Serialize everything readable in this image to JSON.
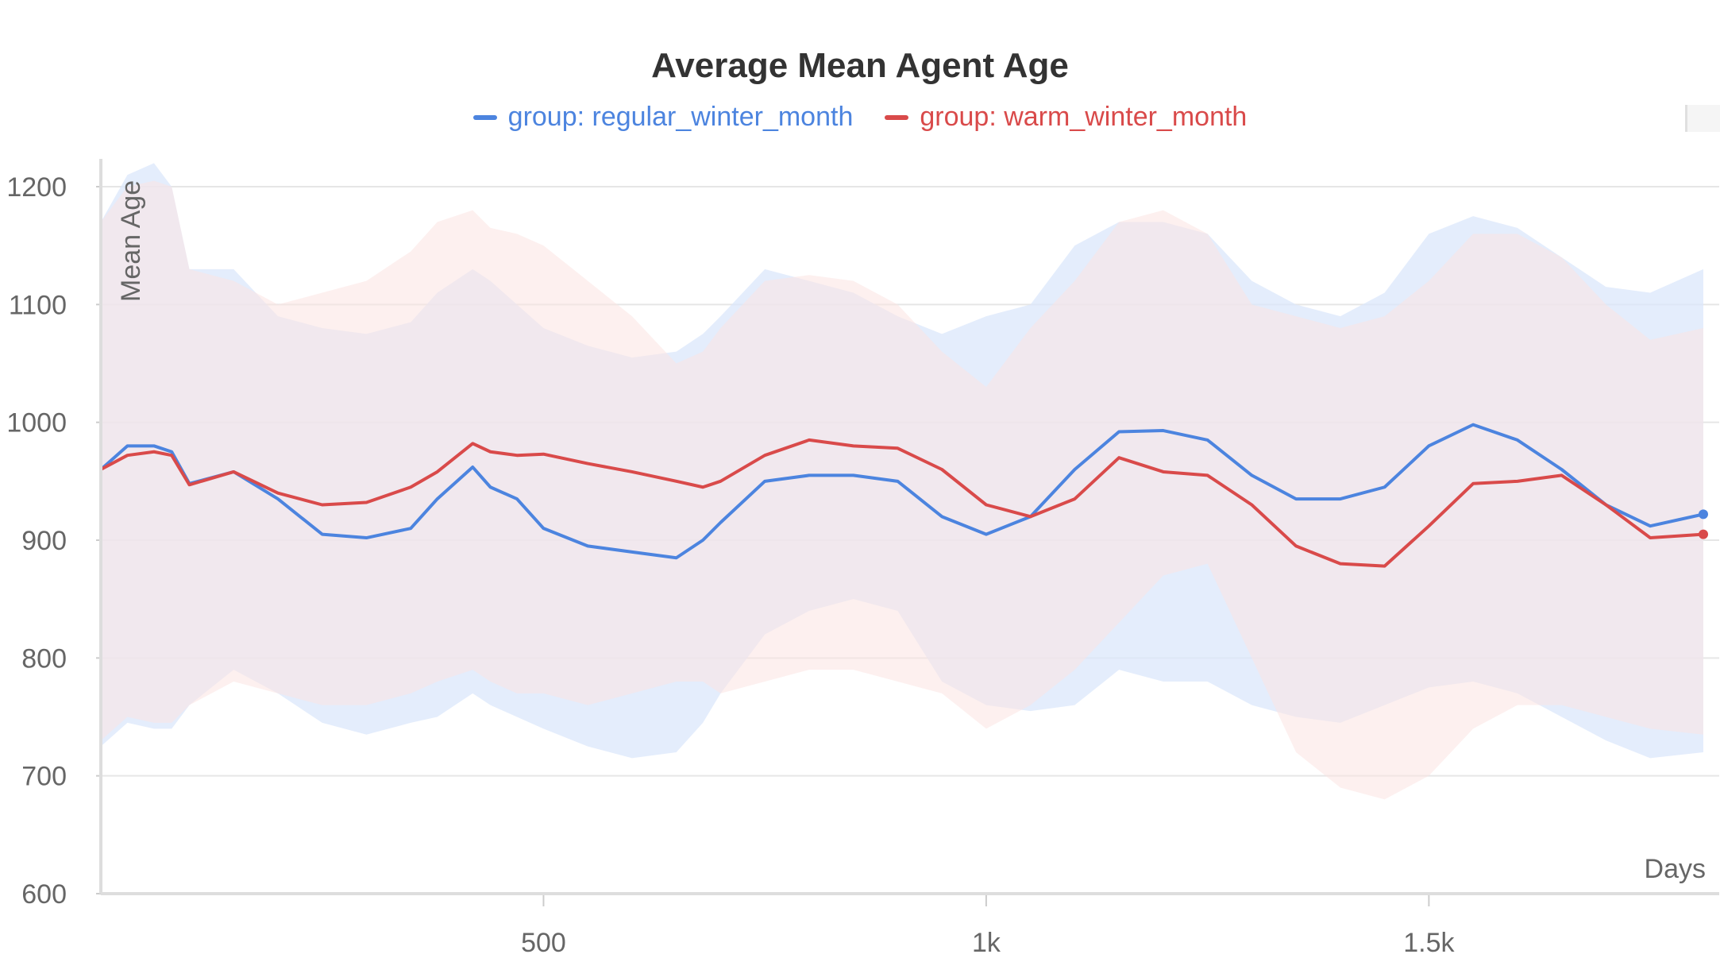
{
  "chart_data": {
    "type": "line",
    "title": "Average Mean Agent Age",
    "xlabel": "Days",
    "ylabel": "Mean Age",
    "xlim": [
      0,
      1810
    ],
    "ylim": [
      600,
      1200
    ],
    "x_ticks": [
      500,
      1000,
      1500
    ],
    "x_tick_labels": [
      "500",
      "1k",
      "1.5k"
    ],
    "y_ticks": [
      600,
      700,
      800,
      900,
      1000,
      1100,
      1200
    ],
    "grid": true,
    "legend_position": "top-center",
    "x": [
      0,
      30,
      60,
      80,
      100,
      150,
      200,
      250,
      300,
      350,
      380,
      420,
      440,
      470,
      500,
      550,
      600,
      650,
      680,
      700,
      750,
      800,
      850,
      900,
      950,
      1000,
      1050,
      1100,
      1150,
      1200,
      1250,
      1300,
      1350,
      1400,
      1450,
      1500,
      1550,
      1600,
      1650,
      1700,
      1750,
      1810
    ],
    "series": [
      {
        "name": "group: regular_winter_month",
        "color": "#4c84df",
        "band_color": "#dbe7fb",
        "values": [
          960,
          980,
          980,
          975,
          948,
          958,
          935,
          905,
          902,
          910,
          935,
          962,
          945,
          935,
          910,
          895,
          890,
          885,
          900,
          915,
          950,
          955,
          955,
          950,
          920,
          905,
          920,
          960,
          992,
          993,
          985,
          955,
          935,
          935,
          945,
          980,
          998,
          985,
          960,
          930,
          912,
          922
        ],
        "upper": [
          1170,
          1210,
          1220,
          1200,
          1130,
          1130,
          1090,
          1080,
          1075,
          1085,
          1110,
          1130,
          1120,
          1100,
          1080,
          1065,
          1055,
          1060,
          1075,
          1090,
          1130,
          1120,
          1110,
          1090,
          1075,
          1090,
          1100,
          1150,
          1170,
          1170,
          1160,
          1120,
          1100,
          1090,
          1110,
          1160,
          1175,
          1165,
          1140,
          1115,
          1110,
          1130
        ],
        "lower": [
          725,
          745,
          740,
          740,
          760,
          790,
          770,
          745,
          735,
          745,
          750,
          770,
          760,
          750,
          740,
          725,
          715,
          720,
          745,
          770,
          820,
          840,
          850,
          840,
          780,
          760,
          755,
          760,
          790,
          780,
          780,
          760,
          750,
          745,
          760,
          775,
          780,
          770,
          750,
          730,
          715,
          720
        ]
      },
      {
        "name": "group: warm_winter_month",
        "color": "#d94a4a",
        "band_color": "#fbe3e1",
        "values": [
          960,
          972,
          975,
          972,
          947,
          958,
          940,
          930,
          932,
          945,
          958,
          982,
          975,
          972,
          973,
          965,
          958,
          950,
          945,
          950,
          972,
          985,
          980,
          978,
          960,
          930,
          920,
          935,
          970,
          958,
          955,
          930,
          895,
          880,
          878,
          912,
          948,
          950,
          955,
          930,
          902,
          905
        ],
        "upper": [
          1170,
          1200,
          1205,
          1200,
          1130,
          1120,
          1100,
          1110,
          1120,
          1145,
          1170,
          1180,
          1165,
          1160,
          1150,
          1120,
          1090,
          1050,
          1060,
          1080,
          1120,
          1125,
          1120,
          1100,
          1060,
          1030,
          1080,
          1120,
          1170,
          1180,
          1160,
          1100,
          1090,
          1080,
          1090,
          1120,
          1160,
          1160,
          1140,
          1100,
          1070,
          1080
        ],
        "lower": [
          730,
          750,
          745,
          745,
          760,
          780,
          770,
          760,
          760,
          770,
          780,
          790,
          780,
          770,
          770,
          760,
          770,
          780,
          780,
          770,
          780,
          790,
          790,
          780,
          770,
          740,
          760,
          790,
          830,
          870,
          880,
          800,
          720,
          690,
          680,
          700,
          740,
          760,
          760,
          750,
          740,
          735
        ]
      }
    ]
  }
}
